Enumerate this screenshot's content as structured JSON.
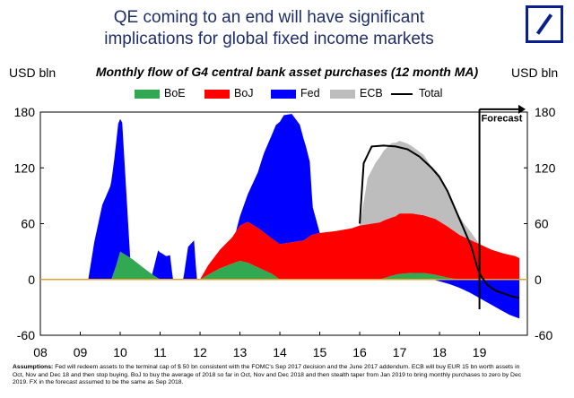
{
  "headline": {
    "line1": "QE coming to an end will have significant",
    "line2": "implications for global fixed income markets"
  },
  "colors": {
    "BoE": "#33a853",
    "BoJ": "#ff0000",
    "Fed": "#0000ff",
    "ECB": "#bdbdbd",
    "Total": "#000000",
    "zero_line": "#e0a030",
    "brand": "#0a1f8f"
  },
  "chart_data": {
    "type": "area",
    "title": "Monthly flow of G4 central bank asset purchases (12 month MA)",
    "ylabel_left": "USD bln",
    "ylabel_right": "USD bln",
    "ylim": [
      -60,
      180
    ],
    "yticks": [
      -60,
      0,
      60,
      120,
      180
    ],
    "xlim": [
      2008.0,
      2020.2
    ],
    "xticks": [
      "08",
      "09",
      "10",
      "11",
      "12",
      "13",
      "14",
      "15",
      "16",
      "17",
      "18",
      "19"
    ],
    "legend": [
      "BoE",
      "BoJ",
      "Fed",
      "ECB",
      "Total"
    ],
    "legend_position": "top",
    "annotation": "Forecast",
    "series": [
      {
        "name": "Fed",
        "x": [
          2009.2,
          2009.35,
          2009.55,
          2009.75,
          2009.85,
          2009.95,
          2010.05,
          2010.15,
          2010.25,
          2010.5,
          2010.65,
          2010.75,
          2010.8,
          2010.95,
          2011.05,
          2011.15,
          2011.25,
          2011.32,
          2011.45,
          2011.58,
          2011.7,
          2011.85,
          2011.92,
          2012.2,
          2012.6,
          2012.9,
          2013.2,
          2013.45,
          2013.6,
          2013.75,
          2013.9,
          2014.1,
          2014.3,
          2014.5,
          2014.65,
          2014.75,
          2014.82,
          2015.0,
          2016.0,
          2017.0,
          2017.5,
          2017.82,
          2018.0,
          2018.25,
          2018.5,
          2018.75,
          2019.0,
          2019.25,
          2019.5,
          2019.75,
          2020.0
        ],
        "values": [
          0,
          40,
          80,
          100,
          120,
          145,
          140,
          70,
          0,
          0,
          0,
          0,
          0,
          30,
          28,
          25,
          26,
          0,
          0,
          0,
          35,
          42,
          0,
          0,
          0,
          0,
          30,
          60,
          85,
          105,
          125,
          138,
          138,
          125,
          100,
          80,
          30,
          0,
          0,
          0,
          0,
          0,
          -2,
          -5,
          -9,
          -14,
          -20,
          -26,
          -32,
          -38,
          -42
        ]
      },
      {
        "name": "BoE",
        "x": [
          2009.78,
          2009.9,
          2010.0,
          2010.3,
          2010.6,
          2010.85,
          2011.0,
          2012.0,
          2012.2,
          2012.5,
          2012.8,
          2013.0,
          2013.2,
          2013.5,
          2013.8,
          2014.0,
          2015.0,
          2016.5,
          2016.8,
          2017.0,
          2017.3,
          2017.6,
          2017.9,
          2018.2,
          2018.5,
          2019.0,
          2020.0
        ],
        "values": [
          0,
          15,
          30,
          22,
          12,
          4,
          0,
          0,
          5,
          12,
          17,
          20,
          18,
          12,
          6,
          0,
          0,
          0,
          4,
          6,
          7,
          7,
          5,
          2,
          0,
          0,
          0
        ]
      },
      {
        "name": "BoJ",
        "x": [
          2008.0,
          2012.0,
          2012.2,
          2012.5,
          2012.8,
          2013.0,
          2013.2,
          2013.5,
          2013.8,
          2014.0,
          2014.3,
          2014.6,
          2014.8,
          2015.0,
          2015.4,
          2015.8,
          2016.0,
          2016.3,
          2016.6,
          2016.9,
          2017.0,
          2017.3,
          2017.6,
          2017.9,
          2018.2,
          2018.5,
          2018.8,
          2019.0,
          2019.3,
          2019.6,
          2019.9,
          2020.0
        ],
        "values": [
          0,
          0,
          10,
          20,
          28,
          38,
          44,
          42,
          38,
          38,
          40,
          42,
          48,
          50,
          52,
          55,
          58,
          60,
          62,
          63,
          65,
          64,
          62,
          60,
          55,
          48,
          42,
          38,
          32,
          28,
          25,
          23
        ]
      },
      {
        "name": "ECB",
        "x": [
          2008.0,
          2016.0,
          2016.2,
          2016.4,
          2016.6,
          2016.8,
          2017.0,
          2017.2,
          2017.4,
          2017.6,
          2017.8,
          2018.0,
          2018.2,
          2018.4,
          2018.6,
          2018.8,
          2019.0,
          2020.0
        ],
        "values": [
          0,
          0,
          50,
          65,
          75,
          80,
          78,
          75,
          70,
          65,
          55,
          50,
          38,
          25,
          15,
          8,
          0,
          0
        ]
      },
      {
        "name": "Total",
        "x": [
          2016.0,
          2016.1,
          2016.3,
          2016.6,
          2016.9,
          2017.2,
          2017.5,
          2017.8,
          2018.0,
          2018.2,
          2018.4,
          2018.6,
          2018.8,
          2018.95,
          2019.05,
          2019.2,
          2019.4,
          2019.6,
          2019.8,
          2020.0
        ],
        "values": [
          60,
          125,
          143,
          144,
          143,
          140,
          132,
          120,
          110,
          95,
          75,
          55,
          35,
          12,
          3,
          -6,
          -12,
          -15,
          -18,
          -20
        ]
      }
    ]
  },
  "notes": {
    "label": "Assumptions:",
    "line1": "Fed will redeem assets to the terminal cap of $ 50 bn consistent with the FOMC's Sep 2017 decision and the June 2017 addendum. ECB will buy EUR 15 bn worth assets in",
    "line2": "Oct, Nov and Dec 18 and then stop buying. BoJ to buy the average of 2018 so far in Oct, Nov and Dec 2018 and then stealth taper from Jan 2019 to bring monthly purchases to zero by Dec",
    "line3": "2019. FX in the forecast assumed to be the same as Sep 2018."
  }
}
